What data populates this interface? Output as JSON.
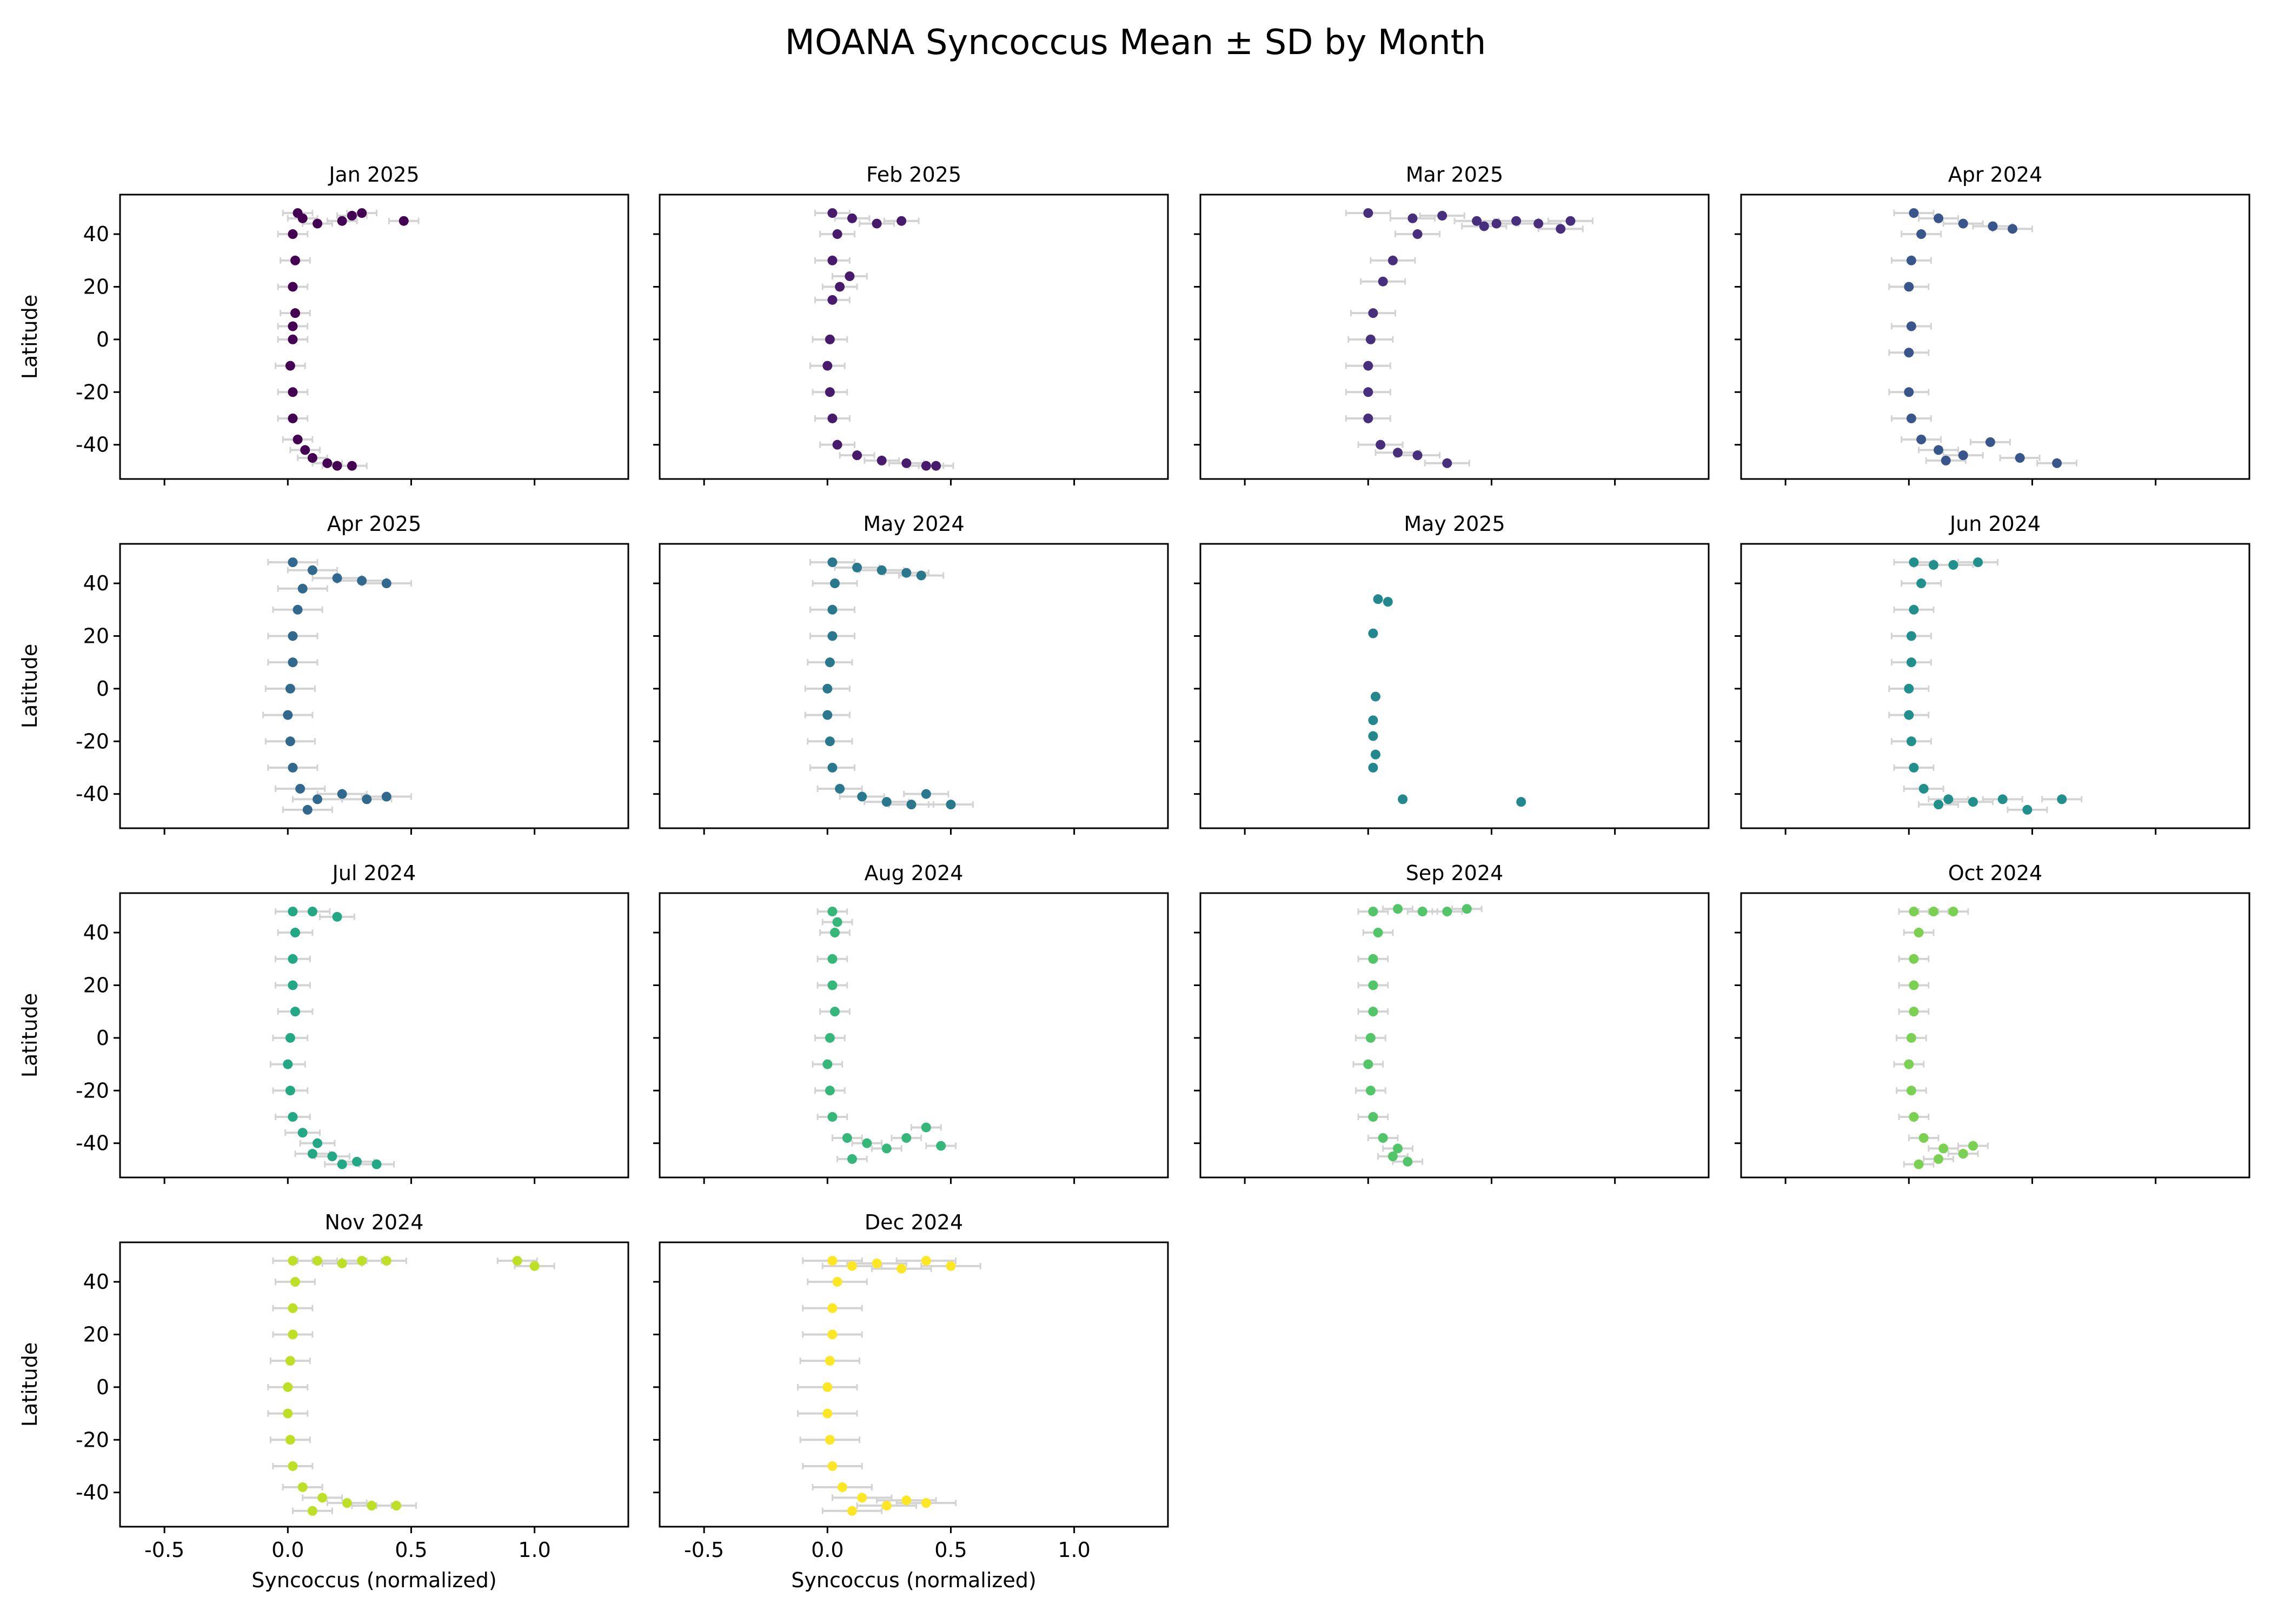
{
  "figure": {
    "title": "MOANA Syncoccus Mean ± SD by Month",
    "xlabel": "Syncoccus (normalized)",
    "ylabel": "Latitude",
    "xticks": [
      "-0.5",
      "0.0",
      "0.5",
      "1.0"
    ],
    "yticks": [
      "40",
      "20",
      "0",
      "-20",
      "-40"
    ],
    "errorbar_color": "#d3d3d3"
  },
  "chart_data": {
    "type": "scatter",
    "title": "MOANA Syncoccus Mean ± SD by Month",
    "xlim": [
      -0.68,
      1.38
    ],
    "ylim": [
      -53,
      55
    ],
    "x_ticks": [
      -0.5,
      0.0,
      0.5,
      1.0
    ],
    "y_ticks": [
      40,
      20,
      0,
      -20,
      -40
    ],
    "xlabel": "Syncoccus (normalized)",
    "ylabel": "Latitude",
    "error_bars": "horizontal ± SD",
    "panels": [
      {
        "title": "Jan 2025",
        "color": "#440154",
        "sd": 0.06,
        "points": [
          [
            0.04,
            48
          ],
          [
            0.06,
            46
          ],
          [
            0.12,
            44
          ],
          [
            0.22,
            45
          ],
          [
            0.26,
            47
          ],
          [
            0.3,
            48
          ],
          [
            0.47,
            45
          ],
          [
            0.02,
            40
          ],
          [
            0.03,
            30
          ],
          [
            0.02,
            20
          ],
          [
            0.03,
            10
          ],
          [
            0.02,
            5
          ],
          [
            0.02,
            0
          ],
          [
            0.01,
            -10
          ],
          [
            0.02,
            -20
          ],
          [
            0.02,
            -30
          ],
          [
            0.04,
            -38
          ],
          [
            0.07,
            -42
          ],
          [
            0.1,
            -45
          ],
          [
            0.16,
            -47
          ],
          [
            0.2,
            -48
          ],
          [
            0.26,
            -48
          ]
        ]
      },
      {
        "title": "Feb 2025",
        "color": "#481a6c",
        "sd": 0.07,
        "points": [
          [
            0.02,
            48
          ],
          [
            0.1,
            46
          ],
          [
            0.2,
            44
          ],
          [
            0.3,
            45
          ],
          [
            0.04,
            40
          ],
          [
            0.02,
            30
          ],
          [
            0.09,
            24
          ],
          [
            0.05,
            20
          ],
          [
            0.02,
            15
          ],
          [
            0.01,
            0
          ],
          [
            0.0,
            -10
          ],
          [
            0.01,
            -20
          ],
          [
            0.02,
            -30
          ],
          [
            0.04,
            -40
          ],
          [
            0.12,
            -44
          ],
          [
            0.22,
            -46
          ],
          [
            0.32,
            -47
          ],
          [
            0.4,
            -48
          ],
          [
            0.44,
            -48
          ]
        ]
      },
      {
        "title": "Mar 2025",
        "color": "#472f7d",
        "sd": 0.09,
        "points": [
          [
            0.0,
            48
          ],
          [
            0.18,
            46
          ],
          [
            0.3,
            47
          ],
          [
            0.44,
            45
          ],
          [
            0.52,
            44
          ],
          [
            0.47,
            43
          ],
          [
            0.6,
            45
          ],
          [
            0.69,
            44
          ],
          [
            0.78,
            42
          ],
          [
            0.82,
            45
          ],
          [
            0.2,
            40
          ],
          [
            0.1,
            30
          ],
          [
            0.06,
            22
          ],
          [
            0.02,
            10
          ],
          [
            0.01,
            0
          ],
          [
            0.0,
            -10
          ],
          [
            0.0,
            -20
          ],
          [
            0.0,
            -30
          ],
          [
            0.05,
            -40
          ],
          [
            0.12,
            -43
          ],
          [
            0.2,
            -44
          ],
          [
            0.32,
            -47
          ]
        ]
      },
      {
        "title": "Apr 2024",
        "color": "#39568c",
        "sd": 0.08,
        "points": [
          [
            0.02,
            48
          ],
          [
            0.12,
            46
          ],
          [
            0.22,
            44
          ],
          [
            0.34,
            43
          ],
          [
            0.42,
            42
          ],
          [
            0.05,
            40
          ],
          [
            0.01,
            30
          ],
          [
            0.0,
            20
          ],
          [
            0.01,
            5
          ],
          [
            0.0,
            -5
          ],
          [
            0.0,
            -20
          ],
          [
            0.01,
            -30
          ],
          [
            0.05,
            -38
          ],
          [
            0.12,
            -42
          ],
          [
            0.22,
            -44
          ],
          [
            0.33,
            -39
          ],
          [
            0.45,
            -45
          ],
          [
            0.6,
            -47
          ],
          [
            0.15,
            -46
          ]
        ]
      },
      {
        "title": "Apr 2025",
        "color": "#31688e",
        "sd": 0.1,
        "points": [
          [
            0.02,
            48
          ],
          [
            0.1,
            45
          ],
          [
            0.2,
            42
          ],
          [
            0.3,
            41
          ],
          [
            0.4,
            40
          ],
          [
            0.06,
            38
          ],
          [
            0.04,
            30
          ],
          [
            0.02,
            20
          ],
          [
            0.02,
            10
          ],
          [
            0.01,
            0
          ],
          [
            0.0,
            -10
          ],
          [
            0.01,
            -20
          ],
          [
            0.02,
            -30
          ],
          [
            0.05,
            -38
          ],
          [
            0.12,
            -42
          ],
          [
            0.22,
            -40
          ],
          [
            0.32,
            -42
          ],
          [
            0.4,
            -41
          ],
          [
            0.08,
            -46
          ]
        ]
      },
      {
        "title": "May 2024",
        "color": "#2a788e",
        "sd": 0.09,
        "points": [
          [
            0.02,
            48
          ],
          [
            0.12,
            46
          ],
          [
            0.22,
            45
          ],
          [
            0.32,
            44
          ],
          [
            0.38,
            43
          ],
          [
            0.03,
            40
          ],
          [
            0.02,
            30
          ],
          [
            0.02,
            20
          ],
          [
            0.01,
            10
          ],
          [
            0.0,
            0
          ],
          [
            0.0,
            -10
          ],
          [
            0.01,
            -20
          ],
          [
            0.02,
            -30
          ],
          [
            0.05,
            -38
          ],
          [
            0.14,
            -41
          ],
          [
            0.24,
            -43
          ],
          [
            0.34,
            -44
          ],
          [
            0.5,
            -44
          ],
          [
            0.4,
            -40
          ]
        ]
      },
      {
        "title": "May 2025",
        "color": "#23888e",
        "sd": 0.0,
        "points": [
          [
            0.04,
            34
          ],
          [
            0.08,
            33
          ],
          [
            0.02,
            21
          ],
          [
            0.03,
            -3
          ],
          [
            0.02,
            -12
          ],
          [
            0.02,
            -18
          ],
          [
            0.03,
            -25
          ],
          [
            0.02,
            -30
          ],
          [
            0.14,
            -42
          ],
          [
            0.62,
            -43
          ]
        ]
      },
      {
        "title": "Jun 2024",
        "color": "#21908d",
        "sd": 0.08,
        "points": [
          [
            0.02,
            48
          ],
          [
            0.1,
            47
          ],
          [
            0.18,
            47
          ],
          [
            0.28,
            48
          ],
          [
            0.05,
            40
          ],
          [
            0.02,
            30
          ],
          [
            0.01,
            20
          ],
          [
            0.01,
            10
          ],
          [
            0.0,
            0
          ],
          [
            0.0,
            -10
          ],
          [
            0.01,
            -20
          ],
          [
            0.02,
            -30
          ],
          [
            0.06,
            -38
          ],
          [
            0.16,
            -42
          ],
          [
            0.26,
            -43
          ],
          [
            0.38,
            -42
          ],
          [
            0.48,
            -46
          ],
          [
            0.62,
            -42
          ],
          [
            0.12,
            -44
          ]
        ]
      },
      {
        "title": "Jul 2024",
        "color": "#22a884",
        "sd": 0.07,
        "points": [
          [
            0.02,
            48
          ],
          [
            0.1,
            48
          ],
          [
            0.2,
            46
          ],
          [
            0.03,
            40
          ],
          [
            0.02,
            30
          ],
          [
            0.02,
            20
          ],
          [
            0.03,
            10
          ],
          [
            0.01,
            0
          ],
          [
            0.0,
            -10
          ],
          [
            0.01,
            -20
          ],
          [
            0.02,
            -30
          ],
          [
            0.06,
            -36
          ],
          [
            0.12,
            -40
          ],
          [
            0.18,
            -45
          ],
          [
            0.22,
            -48
          ],
          [
            0.28,
            -47
          ],
          [
            0.36,
            -48
          ],
          [
            0.1,
            -44
          ]
        ]
      },
      {
        "title": "Aug 2024",
        "color": "#35b779",
        "sd": 0.06,
        "points": [
          [
            0.02,
            48
          ],
          [
            0.04,
            44
          ],
          [
            0.03,
            40
          ],
          [
            0.02,
            30
          ],
          [
            0.02,
            20
          ],
          [
            0.03,
            10
          ],
          [
            0.01,
            0
          ],
          [
            0.0,
            -10
          ],
          [
            0.01,
            -20
          ],
          [
            0.02,
            -30
          ],
          [
            0.08,
            -38
          ],
          [
            0.16,
            -40
          ],
          [
            0.24,
            -42
          ],
          [
            0.32,
            -38
          ],
          [
            0.4,
            -34
          ],
          [
            0.46,
            -41
          ],
          [
            0.1,
            -46
          ]
        ]
      },
      {
        "title": "Sep 2024",
        "color": "#52c569",
        "sd": 0.06,
        "points": [
          [
            0.02,
            48
          ],
          [
            0.12,
            49
          ],
          [
            0.22,
            48
          ],
          [
            0.32,
            48
          ],
          [
            0.4,
            49
          ],
          [
            0.04,
            40
          ],
          [
            0.02,
            30
          ],
          [
            0.02,
            20
          ],
          [
            0.02,
            10
          ],
          [
            0.01,
            0
          ],
          [
            0.0,
            -10
          ],
          [
            0.01,
            -20
          ],
          [
            0.02,
            -30
          ],
          [
            0.06,
            -38
          ],
          [
            0.12,
            -42
          ],
          [
            0.16,
            -47
          ],
          [
            0.1,
            -45
          ]
        ]
      },
      {
        "title": "Oct 2024",
        "color": "#7ad151",
        "sd": 0.06,
        "points": [
          [
            0.02,
            48
          ],
          [
            0.1,
            48
          ],
          [
            0.18,
            48
          ],
          [
            0.04,
            40
          ],
          [
            0.02,
            30
          ],
          [
            0.02,
            20
          ],
          [
            0.02,
            10
          ],
          [
            0.01,
            0
          ],
          [
            0.0,
            -10
          ],
          [
            0.01,
            -20
          ],
          [
            0.02,
            -30
          ],
          [
            0.06,
            -38
          ],
          [
            0.14,
            -42
          ],
          [
            0.22,
            -44
          ],
          [
            0.26,
            -41
          ],
          [
            0.12,
            -46
          ],
          [
            0.04,
            -48
          ]
        ]
      },
      {
        "title": "Nov 2024",
        "color": "#bddf26",
        "sd": 0.08,
        "points": [
          [
            0.02,
            48
          ],
          [
            0.12,
            48
          ],
          [
            0.22,
            47
          ],
          [
            0.3,
            48
          ],
          [
            0.4,
            48
          ],
          [
            0.93,
            48
          ],
          [
            1.0,
            46
          ],
          [
            0.03,
            40
          ],
          [
            0.02,
            30
          ],
          [
            0.02,
            20
          ],
          [
            0.01,
            10
          ],
          [
            0.0,
            0
          ],
          [
            0.0,
            -10
          ],
          [
            0.01,
            -20
          ],
          [
            0.02,
            -30
          ],
          [
            0.06,
            -38
          ],
          [
            0.14,
            -42
          ],
          [
            0.24,
            -44
          ],
          [
            0.34,
            -45
          ],
          [
            0.44,
            -45
          ],
          [
            0.1,
            -47
          ]
        ]
      },
      {
        "title": "Dec 2024",
        "color": "#fde725",
        "sd": 0.12,
        "points": [
          [
            0.02,
            48
          ],
          [
            0.1,
            46
          ],
          [
            0.2,
            47
          ],
          [
            0.3,
            45
          ],
          [
            0.4,
            48
          ],
          [
            0.5,
            46
          ],
          [
            0.04,
            40
          ],
          [
            0.02,
            30
          ],
          [
            0.02,
            20
          ],
          [
            0.01,
            10
          ],
          [
            0.0,
            0
          ],
          [
            0.0,
            -10
          ],
          [
            0.01,
            -20
          ],
          [
            0.02,
            -30
          ],
          [
            0.06,
            -38
          ],
          [
            0.14,
            -42
          ],
          [
            0.24,
            -45
          ],
          [
            0.32,
            -43
          ],
          [
            0.4,
            -44
          ],
          [
            0.1,
            -47
          ]
        ]
      }
    ]
  }
}
